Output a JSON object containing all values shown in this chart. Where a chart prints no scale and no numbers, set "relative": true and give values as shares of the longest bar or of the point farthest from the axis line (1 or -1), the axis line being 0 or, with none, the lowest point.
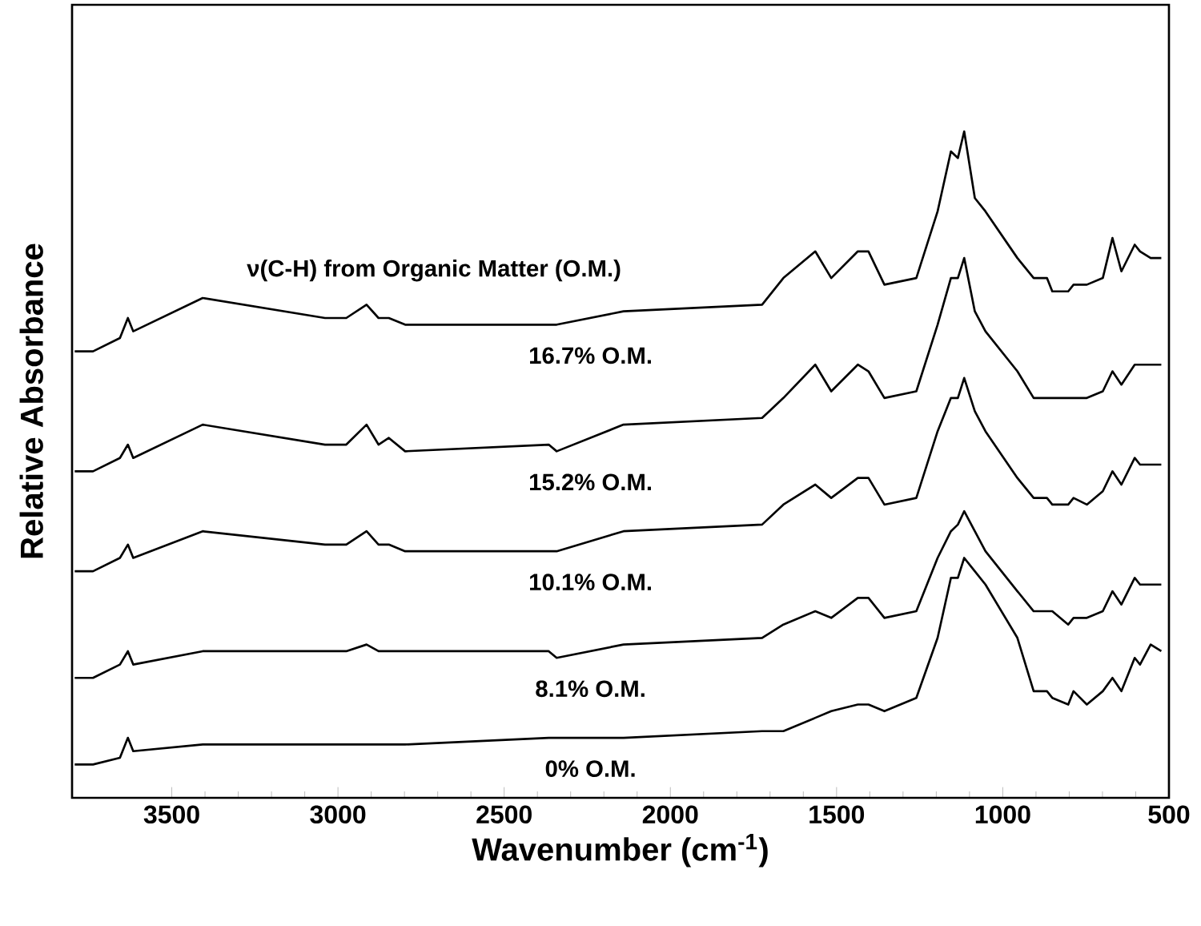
{
  "chart_data": {
    "type": "line",
    "xlabel": "Wavenumber (cm$^{-1}$)",
    "ylabel": "Relative Absorbance",
    "relative": true,
    "annotations": [
      "ν(C-H) from Organic Matter (O.M.)"
    ],
    "xlim": [
      3800,
      500
    ],
    "xticks": [
      3500,
      3000,
      2500,
      2000,
      1500,
      1000,
      500
    ],
    "x": [
      3792,
      3737,
      3656,
      3632,
      3616,
      3407,
      3039,
      2975,
      2914,
      2878,
      2847,
      2798,
      2366,
      2342,
      2141,
      1724,
      1660,
      1564,
      1516,
      1436,
      1404,
      1356,
      1260,
      1196,
      1156,
      1135,
      1116,
      1084,
      1052,
      956,
      907,
      867,
      851,
      803,
      787,
      747,
      699,
      670,
      643,
      603,
      587,
      555,
      523
    ],
    "series": [
      {
        "name": "16.7% O.M.",
        "color": "#000000",
        "values": [
          0.67,
          0.67,
          0.69,
          0.72,
          0.7,
          0.75,
          0.72,
          0.72,
          0.74,
          0.72,
          0.72,
          0.71,
          0.71,
          0.71,
          0.73,
          0.74,
          0.78,
          0.82,
          0.78,
          0.82,
          0.82,
          0.77,
          0.78,
          0.88,
          0.97,
          0.96,
          1.0,
          0.9,
          0.88,
          0.81,
          0.78,
          0.78,
          0.76,
          0.76,
          0.77,
          0.77,
          0.78,
          0.84,
          0.79,
          0.83,
          0.82,
          0.81,
          0.81
        ]
      },
      {
        "name": "15.2% O.M.",
        "color": "#000000",
        "values": [
          0.49,
          0.49,
          0.51,
          0.53,
          0.51,
          0.56,
          0.53,
          0.53,
          0.56,
          0.53,
          0.54,
          0.52,
          0.53,
          0.52,
          0.56,
          0.57,
          0.6,
          0.65,
          0.61,
          0.65,
          0.64,
          0.6,
          0.61,
          0.71,
          0.78,
          0.78,
          0.81,
          0.73,
          0.7,
          0.64,
          0.6,
          0.6,
          0.6,
          0.6,
          0.6,
          0.6,
          0.61,
          0.64,
          0.62,
          0.65,
          0.65,
          0.65,
          0.65
        ]
      },
      {
        "name": "10.1% O.M.",
        "color": "#000000",
        "values": [
          0.34,
          0.34,
          0.36,
          0.38,
          0.36,
          0.4,
          0.38,
          0.38,
          0.4,
          0.38,
          0.38,
          0.37,
          0.37,
          0.37,
          0.4,
          0.41,
          0.44,
          0.47,
          0.45,
          0.48,
          0.48,
          0.44,
          0.45,
          0.55,
          0.6,
          0.6,
          0.63,
          0.58,
          0.55,
          0.48,
          0.45,
          0.45,
          0.44,
          0.44,
          0.45,
          0.44,
          0.46,
          0.49,
          0.47,
          0.51,
          0.5,
          0.5,
          0.5
        ]
      },
      {
        "name": "8.1% O.M.",
        "color": "#000000",
        "values": [
          0.18,
          0.18,
          0.2,
          0.22,
          0.2,
          0.22,
          0.22,
          0.22,
          0.23,
          0.22,
          0.22,
          0.22,
          0.22,
          0.21,
          0.23,
          0.24,
          0.26,
          0.28,
          0.27,
          0.3,
          0.3,
          0.27,
          0.28,
          0.36,
          0.4,
          0.41,
          0.43,
          0.4,
          0.37,
          0.31,
          0.28,
          0.28,
          0.28,
          0.26,
          0.27,
          0.27,
          0.28,
          0.31,
          0.29,
          0.33,
          0.32,
          0.32,
          0.32
        ]
      },
      {
        "name": "0% O.M.",
        "color": "#000000",
        "values": [
          0.05,
          0.05,
          0.06,
          0.09,
          0.07,
          0.08,
          0.08,
          0.08,
          0.08,
          0.08,
          0.08,
          0.08,
          0.09,
          0.09,
          0.09,
          0.1,
          0.1,
          0.12,
          0.13,
          0.14,
          0.14,
          0.13,
          0.15,
          0.24,
          0.33,
          0.33,
          0.36,
          0.34,
          0.32,
          0.24,
          0.16,
          0.16,
          0.15,
          0.14,
          0.16,
          0.14,
          0.16,
          0.18,
          0.16,
          0.21,
          0.2,
          0.23,
          0.22
        ]
      }
    ]
  }
}
